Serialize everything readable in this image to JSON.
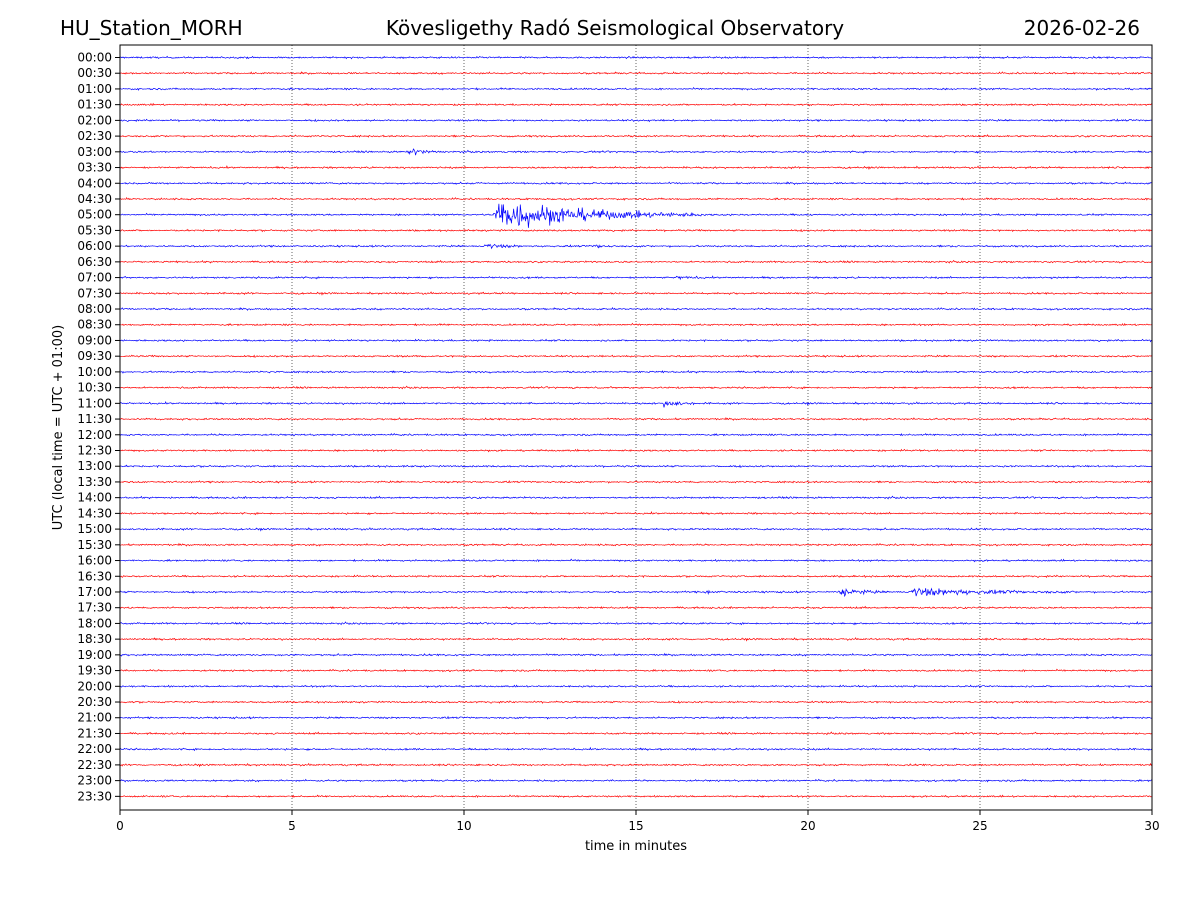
{
  "header": {
    "station": "HU_Station_MORH",
    "observatory": "Kövesligethy Radó Seismological Observatory",
    "date": "2026-02-26"
  },
  "colors": {
    "trace_a": "#0000ff",
    "trace_b": "#ff0000",
    "grid": "#000000",
    "background": "#ffffff"
  },
  "chart_data": {
    "type": "line",
    "title": "Kövesligethy Radó Seismological Observatory",
    "xlabel": "time in minutes",
    "ylabel": "UTC (local time = UTC + 01:00)",
    "xlim": [
      0,
      30
    ],
    "xticks": [
      "0",
      "5",
      "10",
      "15",
      "20",
      "25",
      "30"
    ],
    "grid": "vertical dotted at x ticks",
    "rows": [
      "00:00",
      "00:30",
      "01:00",
      "01:30",
      "02:00",
      "02:30",
      "03:00",
      "03:30",
      "04:00",
      "04:30",
      "05:00",
      "05:30",
      "06:00",
      "06:30",
      "07:00",
      "07:30",
      "08:00",
      "08:30",
      "09:00",
      "09:30",
      "10:00",
      "10:30",
      "11:00",
      "11:30",
      "12:00",
      "12:30",
      "13:00",
      "13:30",
      "14:00",
      "14:30",
      "15:00",
      "15:30",
      "16:00",
      "16:30",
      "17:00",
      "17:30",
      "18:00",
      "18:30",
      "19:00",
      "19:30",
      "20:00",
      "20:30",
      "21:00",
      "21:30",
      "22:00",
      "22:30",
      "23:00",
      "23:30"
    ],
    "events": [
      {
        "row": "03:00",
        "start_min": 8.4,
        "duration_min": 0.8,
        "peak": 0.55
      },
      {
        "row": "05:00",
        "start_min": 10.9,
        "duration_min": 6.0,
        "peak": 1.9
      },
      {
        "row": "06:00",
        "start_min": 10.6,
        "duration_min": 1.2,
        "peak": 0.3
      },
      {
        "row": "06:00",
        "start_min": 13.8,
        "duration_min": 0.6,
        "peak": 0.25
      },
      {
        "row": "07:00",
        "start_min": 16.2,
        "duration_min": 0.8,
        "peak": 0.2
      },
      {
        "row": "11:00",
        "start_min": 15.8,
        "duration_min": 0.9,
        "peak": 0.55
      },
      {
        "row": "17:00",
        "start_min": 17.0,
        "duration_min": 1.2,
        "peak": 0.15
      },
      {
        "row": "17:00",
        "start_min": 20.9,
        "duration_min": 1.3,
        "peak": 0.6
      },
      {
        "row": "17:00",
        "start_min": 23.0,
        "duration_min": 4.8,
        "peak": 0.45
      }
    ]
  }
}
